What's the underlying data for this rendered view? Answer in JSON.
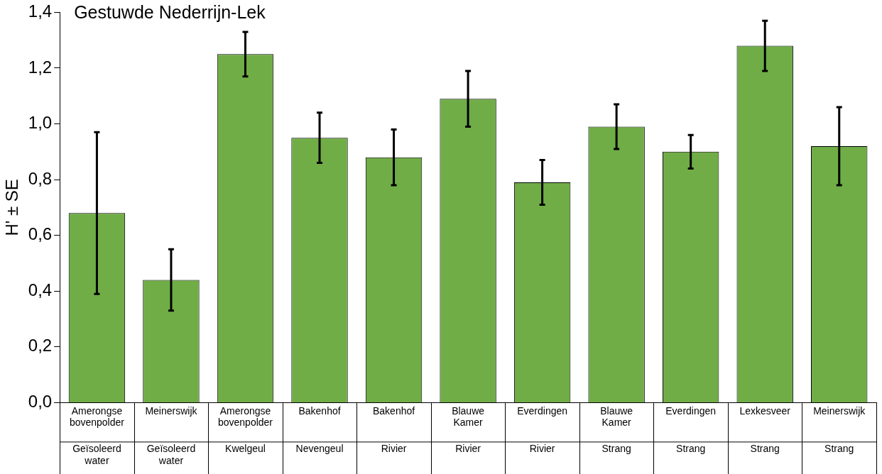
{
  "chart_data": {
    "type": "bar",
    "title": "Gestuwde Nederrijn-Lek",
    "ylabel": "H' ± SE",
    "categories": [
      "Amerongse bovenpolder",
      "Meinerswijk",
      "Amerongse bovenpolder",
      "Bakenhof",
      "Bakenhof",
      "Blauwe Kamer",
      "Everdingen",
      "Blauwe Kamer",
      "Everdingen",
      "Lexkesveer",
      "Meinerswijk"
    ],
    "values": [
      0.68,
      0.44,
      1.25,
      0.95,
      0.88,
      1.09,
      0.79,
      0.99,
      0.9,
      1.28,
      0.92
    ],
    "errors": [
      0.29,
      0.11,
      0.08,
      0.09,
      0.1,
      0.1,
      0.08,
      0.08,
      0.06,
      0.09,
      0.14
    ],
    "color": "#70ad47",
    "annotations": [
      "Geïsoleerd water",
      "Geïsoleerd water",
      "Kwelgeul",
      "Nevengeul",
      "Rivier",
      "Rivier",
      "Rivier",
      "Strang",
      "Strang",
      "Strang",
      "Strang"
    ],
    "ylim": [
      0,
      1.4
    ],
    "yticks": [
      {
        "value": 0,
        "label": "0,0"
      },
      {
        "value": 0.2,
        "label": "0,2"
      },
      {
        "value": 0.4,
        "label": "0,4"
      },
      {
        "value": 0.6,
        "label": "0,6"
      },
      {
        "value": 0.8,
        "label": "0,8"
      },
      {
        "value": 1.0,
        "label": "1,0"
      },
      {
        "value": 1.2,
        "label": "1,2"
      },
      {
        "value": 1.4,
        "label": "1,4"
      }
    ],
    "grid": false,
    "legend": false
  }
}
